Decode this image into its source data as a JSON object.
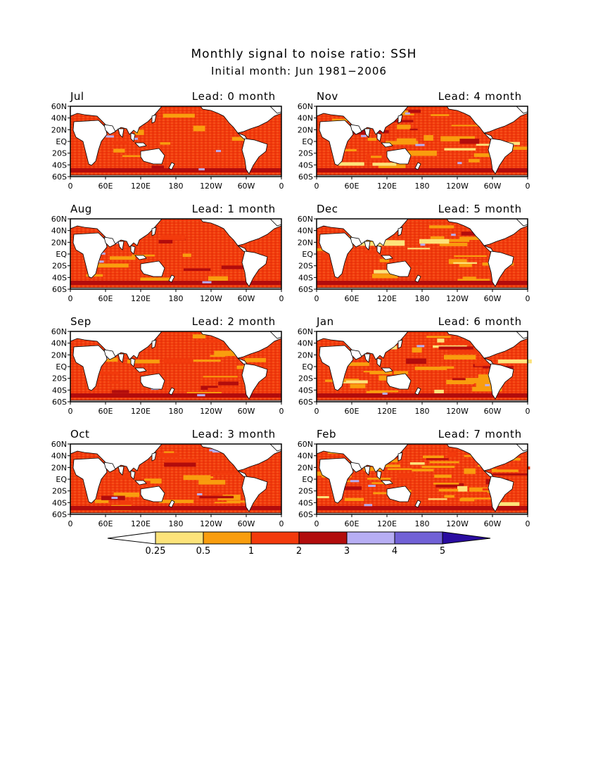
{
  "title": "Monthly signal to noise ratio: SSH",
  "subtitle": "Initial month: Jun 1981−2006",
  "lat_labels": [
    "60N",
    "40N",
    "20N",
    "EQ",
    "20S",
    "40S",
    "60S"
  ],
  "lon_labels": [
    "0",
    "60E",
    "120E",
    "180",
    "120W",
    "60W",
    "0"
  ],
  "panels": [
    {
      "month": "Jul",
      "lead": "Lead: 0 month"
    },
    {
      "month": "Nov",
      "lead": "Lead: 4 month"
    },
    {
      "month": "Aug",
      "lead": "Lead: 1 month"
    },
    {
      "month": "Dec",
      "lead": "Lead: 5 month"
    },
    {
      "month": "Sep",
      "lead": "Lead: 2 month"
    },
    {
      "month": "Jan",
      "lead": "Lead: 6 month"
    },
    {
      "month": "Oct",
      "lead": "Lead: 3 month"
    },
    {
      "month": "Feb",
      "lead": "Lead: 7 month"
    }
  ],
  "colorbar": {
    "labels": [
      "0.25",
      "0.5",
      "1",
      "2",
      "3",
      "4",
      "5"
    ],
    "colors": [
      "#ffffff",
      "#fde37a",
      "#f99d0e",
      "#f23a0c",
      "#b20c0c",
      "#b7aef3",
      "#7161d6",
      "#2a0ca0"
    ]
  },
  "map_colors": {
    "ocean_low": "#f99d0e",
    "ocean_mid": "#f23a0c",
    "ocean_high": "#b20c0c",
    "ocean_light": "#fde37a",
    "ocean_lavender": "#b7aef3",
    "land": "#ffffff"
  }
}
